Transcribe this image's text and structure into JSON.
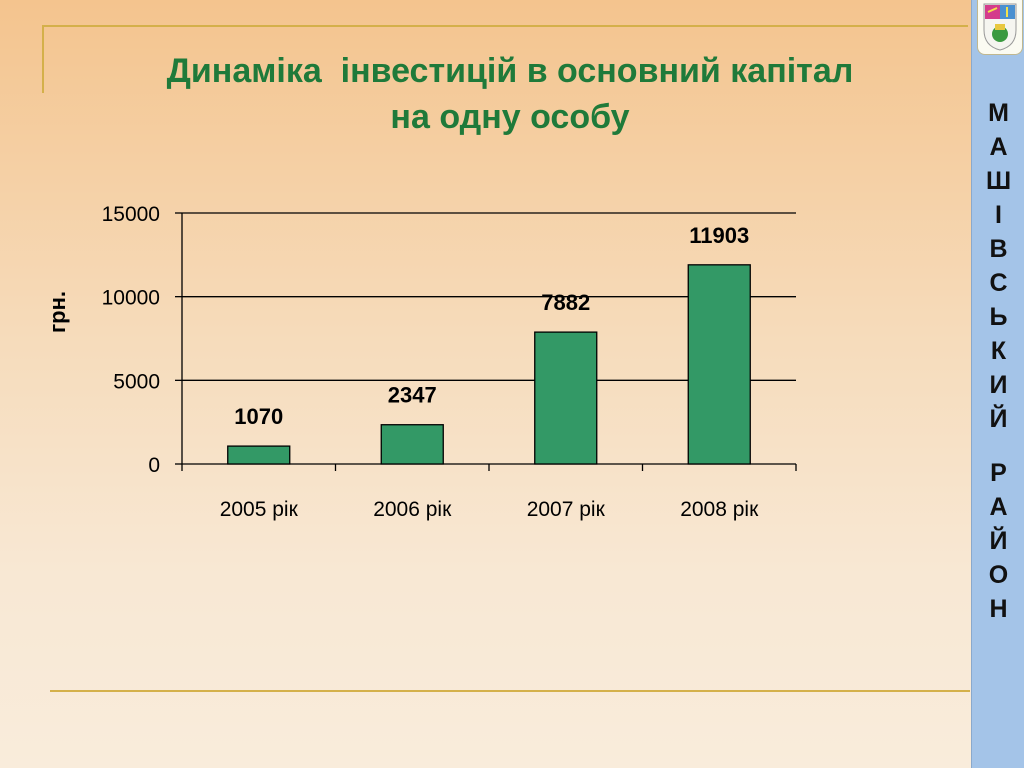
{
  "title": {
    "line1": "Динаміка  інвестицій в основний капітал",
    "line2": "на одну особу"
  },
  "sidebar": {
    "letters": [
      "М",
      "А",
      "Ш",
      "І",
      "В",
      "С",
      "Ь",
      "К",
      "И",
      "Й",
      "",
      "Р",
      "А",
      "Й",
      "О",
      "Н"
    ]
  },
  "colors": {
    "bar": "#339966",
    "title": "#1f7a3a",
    "sidebar": "#a4c4e8"
  },
  "chart_data": {
    "type": "bar",
    "categories": [
      "2005 рік",
      "2006 рік",
      "2007 рік",
      "2008 рік"
    ],
    "values": [
      1070,
      2347,
      7882,
      11903
    ],
    "data_labels": [
      "1070",
      "2347",
      "7882",
      "11903"
    ],
    "ylabel": "грн.",
    "xlabel": "",
    "ylim": [
      0,
      15000
    ],
    "yticks": [
      0,
      5000,
      10000,
      15000
    ],
    "ytick_labels": [
      "0",
      "5000",
      "10000",
      "15000"
    ],
    "grid": true,
    "legend": "none"
  }
}
